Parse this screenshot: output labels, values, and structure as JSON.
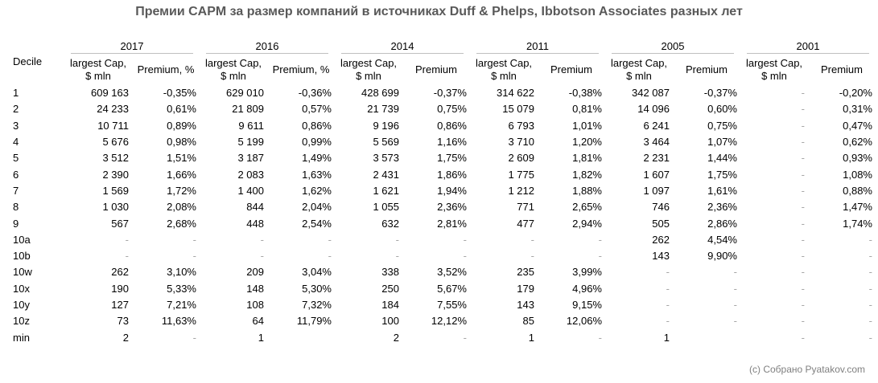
{
  "header": {
    "title": "Премии CAPM за размер компаний в источниках Duff & Phelps, Ibbotson Associates разных лет"
  },
  "table": {
    "row_header": "Decile",
    "groups": [
      {
        "year": "2017",
        "cap_header": "largest Cap, $ mln",
        "premium_header": "Premium, %"
      },
      {
        "year": "2016",
        "cap_header": "largest Cap, $ mln",
        "premium_header": "Premium, %"
      },
      {
        "year": "2014",
        "cap_header": "largest Cap, $ mln",
        "premium_header": "Premium"
      },
      {
        "year": "2011",
        "cap_header": "largest Cap, $ mln",
        "premium_header": "Premium"
      },
      {
        "year": "2005",
        "cap_header": "largest Cap, $ mln",
        "premium_header": "Premium"
      },
      {
        "year": "2001",
        "cap_header": "largest Cap, $ mln",
        "premium_header": "Premium"
      }
    ],
    "rows": [
      [
        "1",
        "609 163",
        "-0,35%",
        "629 010",
        "-0,36%",
        "428 699",
        "-0,37%",
        "314 622",
        "-0,38%",
        "342 087",
        "-0,37%",
        "-",
        "-0,20%"
      ],
      [
        "2",
        "24 233",
        "0,61%",
        "21 809",
        "0,57%",
        "21 739",
        "0,75%",
        "15 079",
        "0,81%",
        "14 096",
        "0,60%",
        "-",
        "0,31%"
      ],
      [
        "3",
        "10 711",
        "0,89%",
        "9 611",
        "0,86%",
        "9 196",
        "0,86%",
        "6 793",
        "1,01%",
        "6 241",
        "0,75%",
        "-",
        "0,47%"
      ],
      [
        "4",
        "5 676",
        "0,98%",
        "5 199",
        "0,99%",
        "5 569",
        "1,16%",
        "3 710",
        "1,20%",
        "3 464",
        "1,07%",
        "-",
        "0,62%"
      ],
      [
        "5",
        "3 512",
        "1,51%",
        "3 187",
        "1,49%",
        "3 573",
        "1,75%",
        "2 609",
        "1,81%",
        "2 231",
        "1,44%",
        "-",
        "0,93%"
      ],
      [
        "6",
        "2 390",
        "1,66%",
        "2 083",
        "1,63%",
        "2 431",
        "1,86%",
        "1 775",
        "1,82%",
        "1 607",
        "1,75%",
        "-",
        "1,08%"
      ],
      [
        "7",
        "1 569",
        "1,72%",
        "1 400",
        "1,62%",
        "1 621",
        "1,94%",
        "1 212",
        "1,88%",
        "1 097",
        "1,61%",
        "-",
        "0,88%"
      ],
      [
        "8",
        "1 030",
        "2,08%",
        "844",
        "2,04%",
        "1 055",
        "2,36%",
        "771",
        "2,65%",
        "746",
        "2,36%",
        "-",
        "1,47%"
      ],
      [
        "9",
        "567",
        "2,68%",
        "448",
        "2,54%",
        "632",
        "2,81%",
        "477",
        "2,94%",
        "505",
        "2,86%",
        "-",
        "1,74%"
      ],
      [
        "10a",
        "-",
        "-",
        "-",
        "-",
        "-",
        "-",
        "-",
        "-",
        "262",
        "4,54%",
        "-",
        "-"
      ],
      [
        "10b",
        "-",
        "-",
        "-",
        "-",
        "-",
        "-",
        "-",
        "-",
        "143",
        "9,90%",
        "-",
        "-"
      ],
      [
        "10w",
        "262",
        "3,10%",
        "209",
        "3,04%",
        "338",
        "3,52%",
        "235",
        "3,99%",
        "-",
        "-",
        "-",
        "-"
      ],
      [
        "10x",
        "190",
        "5,33%",
        "148",
        "5,30%",
        "250",
        "5,67%",
        "179",
        "4,96%",
        "-",
        "-",
        "-",
        "-"
      ],
      [
        "10y",
        "127",
        "7,21%",
        "108",
        "7,32%",
        "184",
        "7,55%",
        "143",
        "9,15%",
        "-",
        "-",
        "-",
        "-"
      ],
      [
        "10z",
        "73",
        "11,63%",
        "64",
        "11,79%",
        "100",
        "12,12%",
        "85",
        "12,06%",
        "-",
        "-",
        "-",
        "-"
      ],
      [
        "min",
        "2",
        "-",
        "1",
        null,
        "2",
        "-",
        "1",
        "-",
        "1",
        null,
        "-",
        "-"
      ]
    ]
  },
  "footer": {
    "credit": "(c) Собрано Pyatakov.com"
  }
}
